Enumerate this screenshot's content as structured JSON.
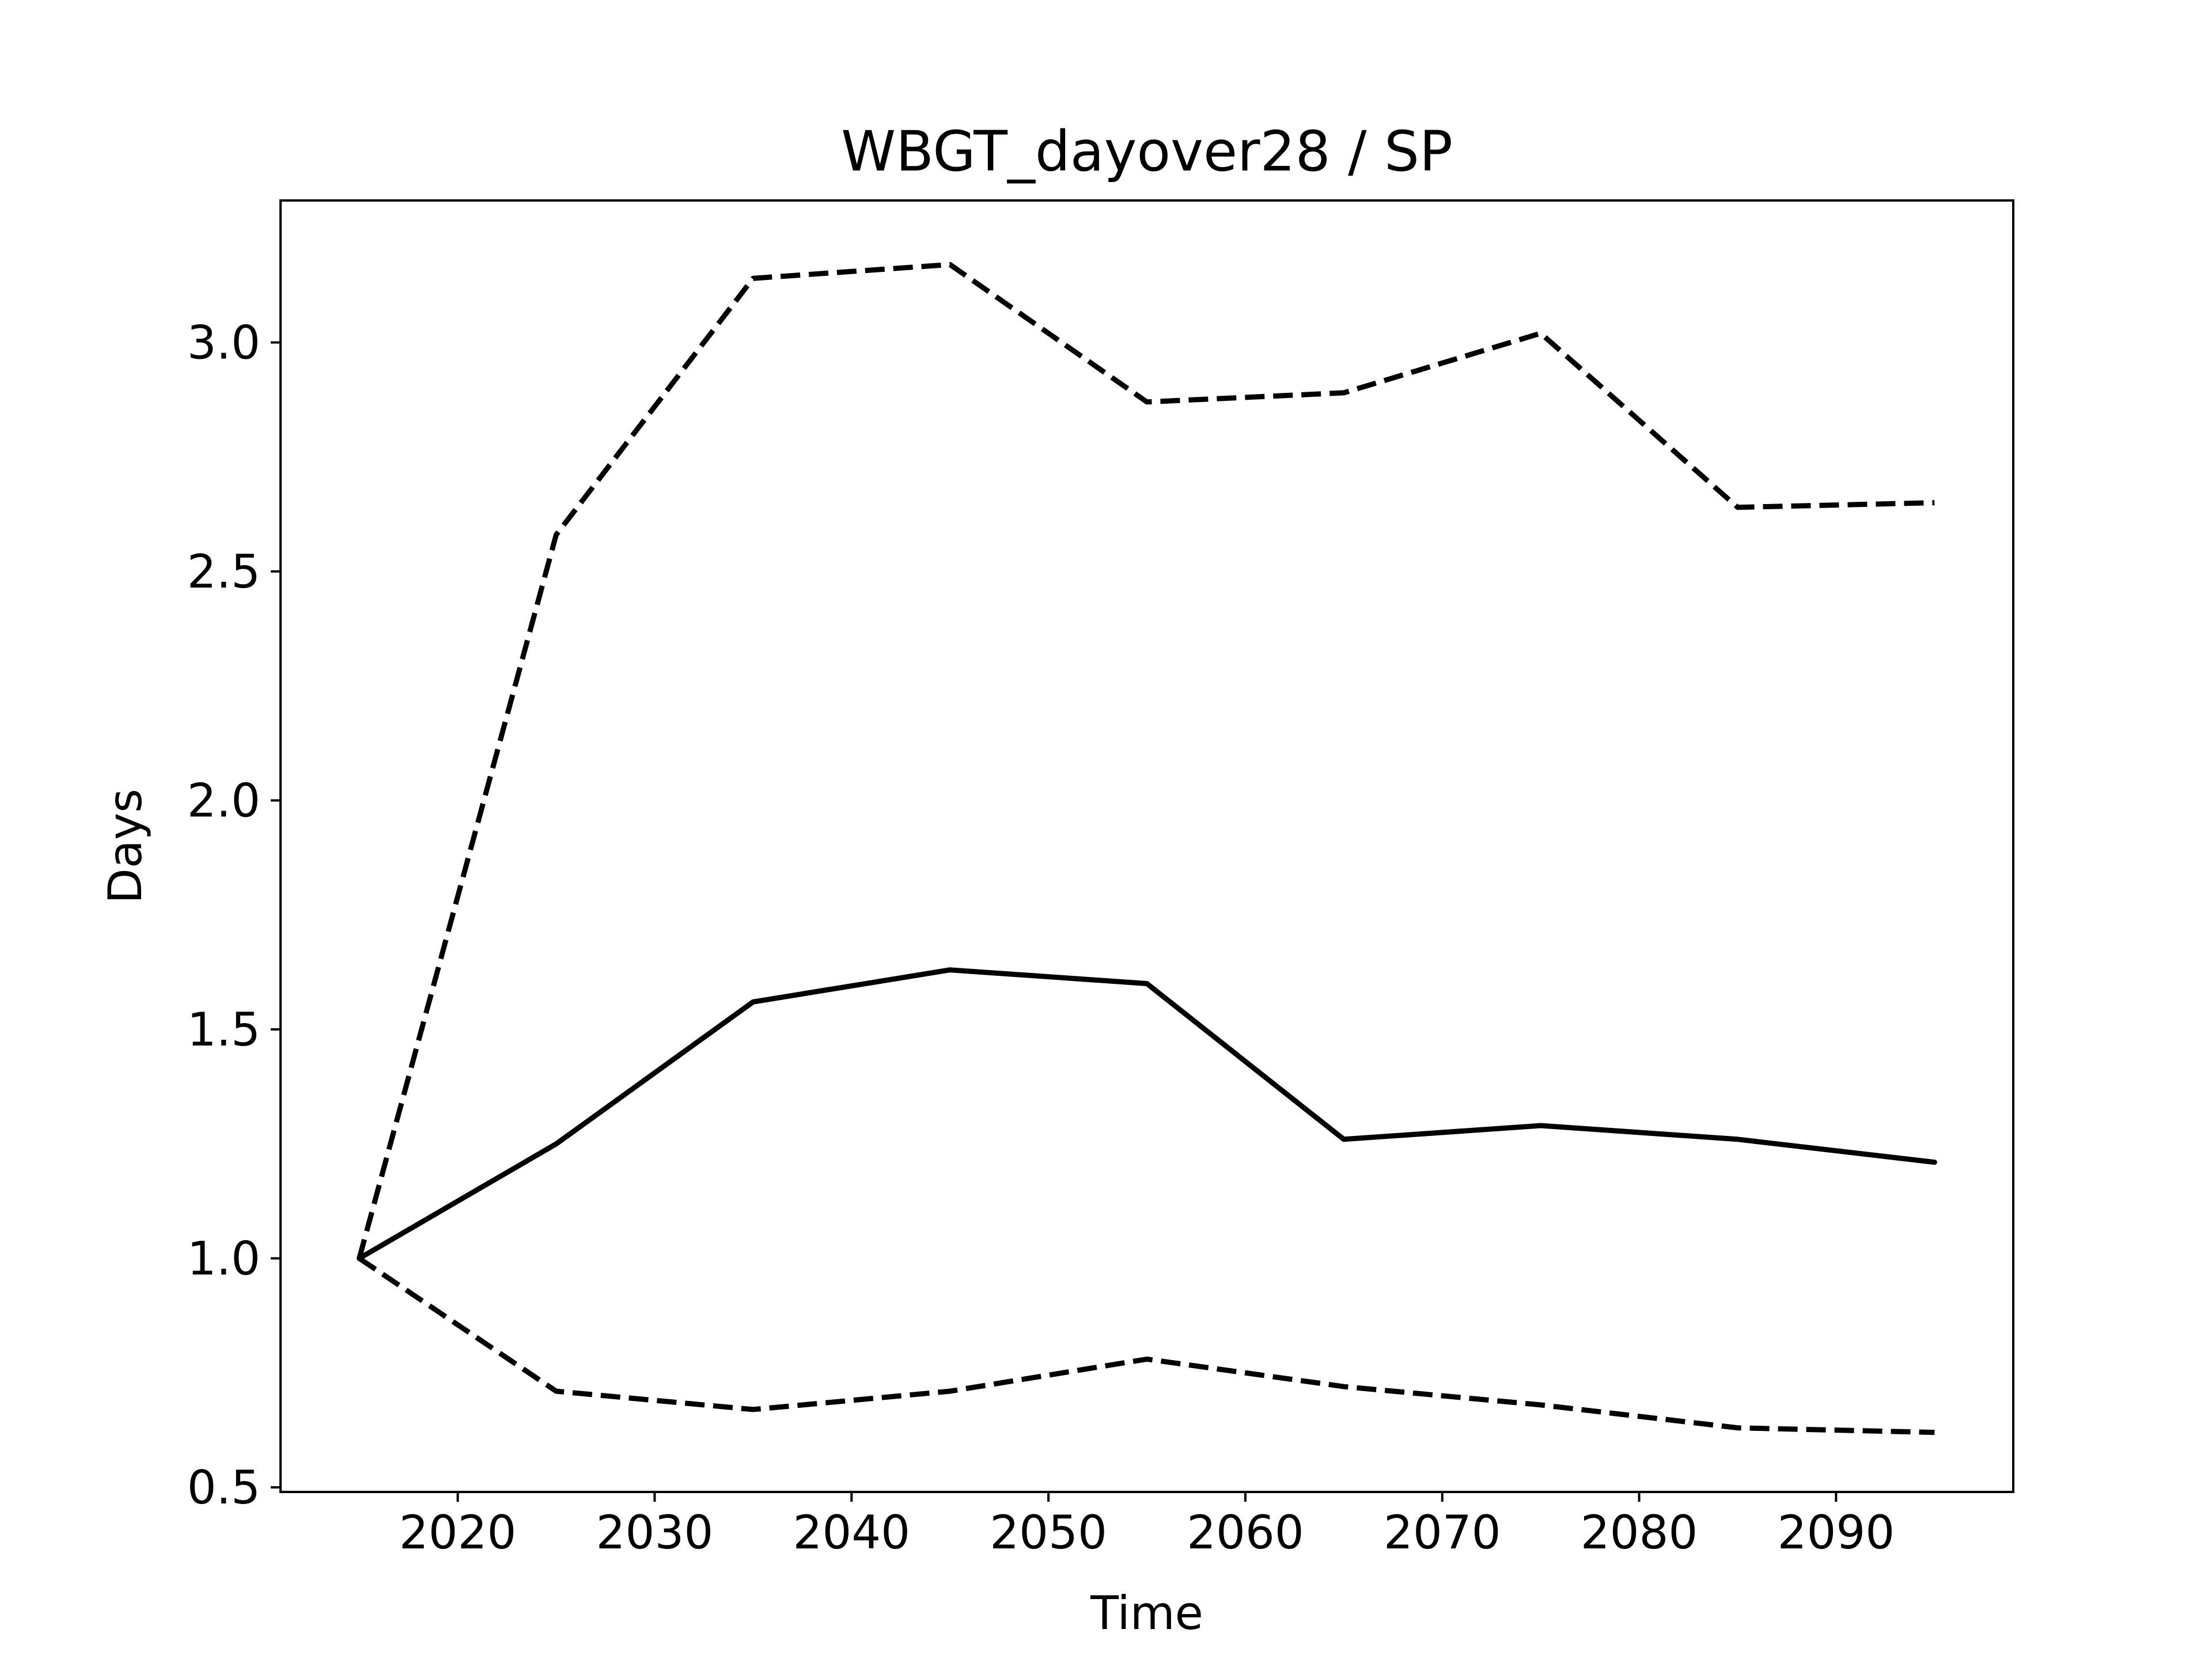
{
  "chart_data": {
    "type": "line",
    "title": "WBGT_dayover28 / SP",
    "xlabel": "Time",
    "ylabel": "Days",
    "xlim": [
      2011,
      2099
    ],
    "ylim": [
      0.49,
      3.31
    ],
    "xticks": [
      2020,
      2030,
      2040,
      2050,
      2060,
      2070,
      2080,
      2090
    ],
    "yticks": [
      0.5,
      1.0,
      1.5,
      2.0,
      2.5,
      3.0
    ],
    "xtick_labels": [
      "2020",
      "2030",
      "2040",
      "2050",
      "2060",
      "2070",
      "2080",
      "2090"
    ],
    "ytick_labels": [
      "0.5",
      "1.0",
      "1.5",
      "2.0",
      "2.5",
      "3.0"
    ],
    "grid": false,
    "x": [
      2015,
      2025,
      2035,
      2045,
      2055,
      2065,
      2075,
      2085,
      2095
    ],
    "series": [
      {
        "style": "dashed",
        "color": "#000000",
        "values": [
          1.0,
          2.58,
          3.14,
          3.17,
          2.87,
          2.89,
          3.02,
          2.64,
          2.65
        ]
      },
      {
        "style": "solid",
        "color": "#000000",
        "values": [
          1.0,
          1.25,
          1.56,
          1.63,
          1.6,
          1.26,
          1.29,
          1.26,
          1.21
        ]
      },
      {
        "style": "dashed",
        "color": "#000000",
        "values": [
          1.0,
          0.71,
          0.67,
          0.71,
          0.78,
          0.72,
          0.68,
          0.63,
          0.62
        ]
      }
    ]
  }
}
